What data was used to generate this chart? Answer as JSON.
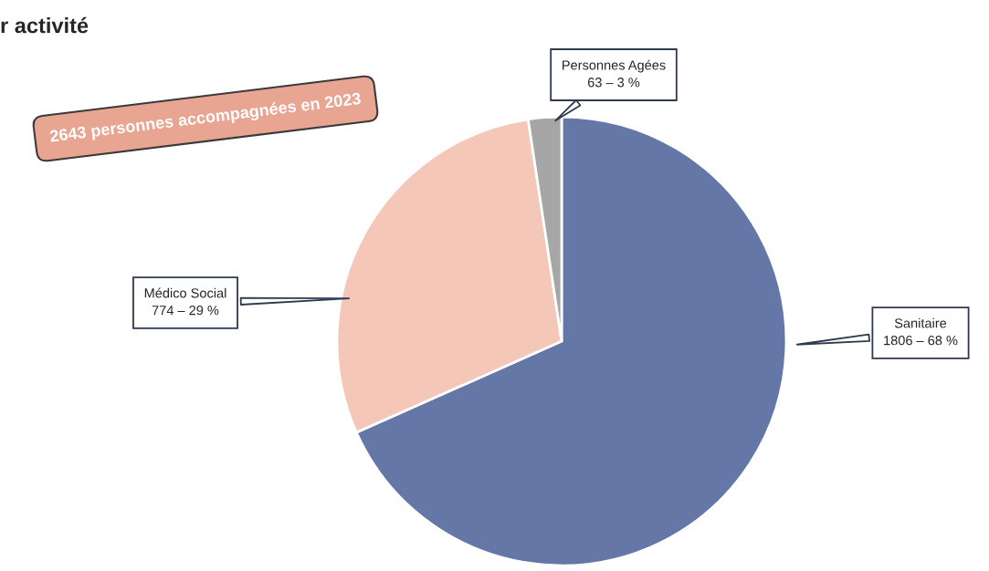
{
  "chart_data": {
    "type": "pie",
    "title": "r activité",
    "categories": [
      "Sanitaire",
      "Médico Social",
      "Personnes Agées"
    ],
    "values": [
      1806,
      774,
      63
    ],
    "value_labels": [
      "1806 – 68 %",
      "774 – 29 %",
      "63 – 3 %"
    ],
    "colors": [
      "#6577a7",
      "#f4c7b9",
      "#a6a6a6"
    ],
    "annotations": [
      "2643 personnes accompagnées en 2023"
    ]
  }
}
